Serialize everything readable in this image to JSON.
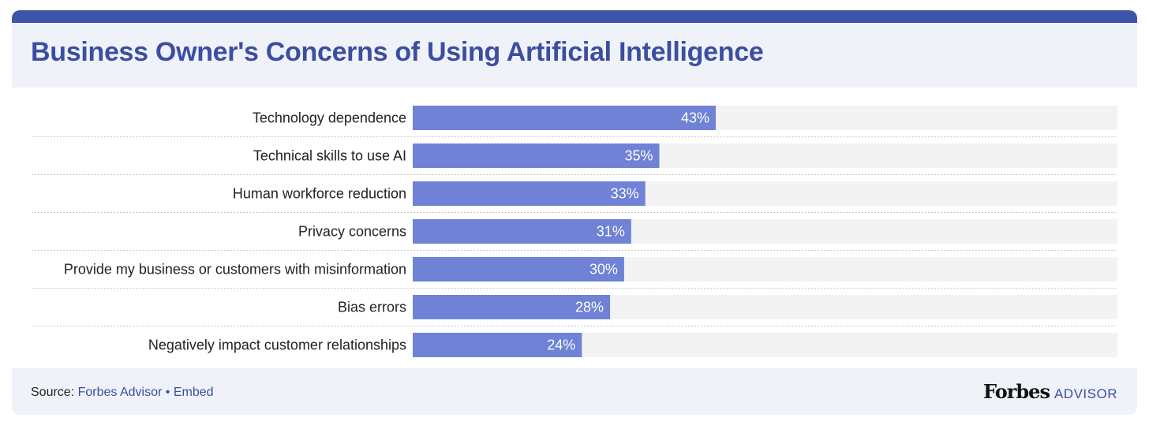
{
  "title": "Business Owner's Concerns of Using Artificial Intelligence",
  "footer": {
    "source_prefix": "Source: ",
    "source_link": "Forbes Advisor",
    "separator": " • ",
    "embed_link": "Embed",
    "brand_name": "Forbes",
    "brand_suffix": "ADVISOR"
  },
  "colors": {
    "bar": "#6f82d6",
    "track": "#f3f3f3",
    "title": "#3c4ea1",
    "header_bg": "#eff2f9",
    "accent_bar": "#3d55a8"
  },
  "chart_data": {
    "type": "bar",
    "orientation": "horizontal",
    "title": "Business Owner's Concerns of Using Artificial Intelligence",
    "categories": [
      "Technology dependence",
      "Technical skills to use AI",
      "Human workforce reduction",
      "Privacy concerns",
      "Provide my business or customers with misinformation",
      "Bias errors",
      "Negatively impact customer relationships"
    ],
    "values": [
      43,
      35,
      33,
      31,
      30,
      28,
      24
    ],
    "value_labels": [
      "43%",
      "35%",
      "33%",
      "31%",
      "30%",
      "28%",
      "24%"
    ],
    "unit": "%",
    "xlim": [
      0,
      100
    ],
    "grid": false,
    "legend": "none"
  }
}
